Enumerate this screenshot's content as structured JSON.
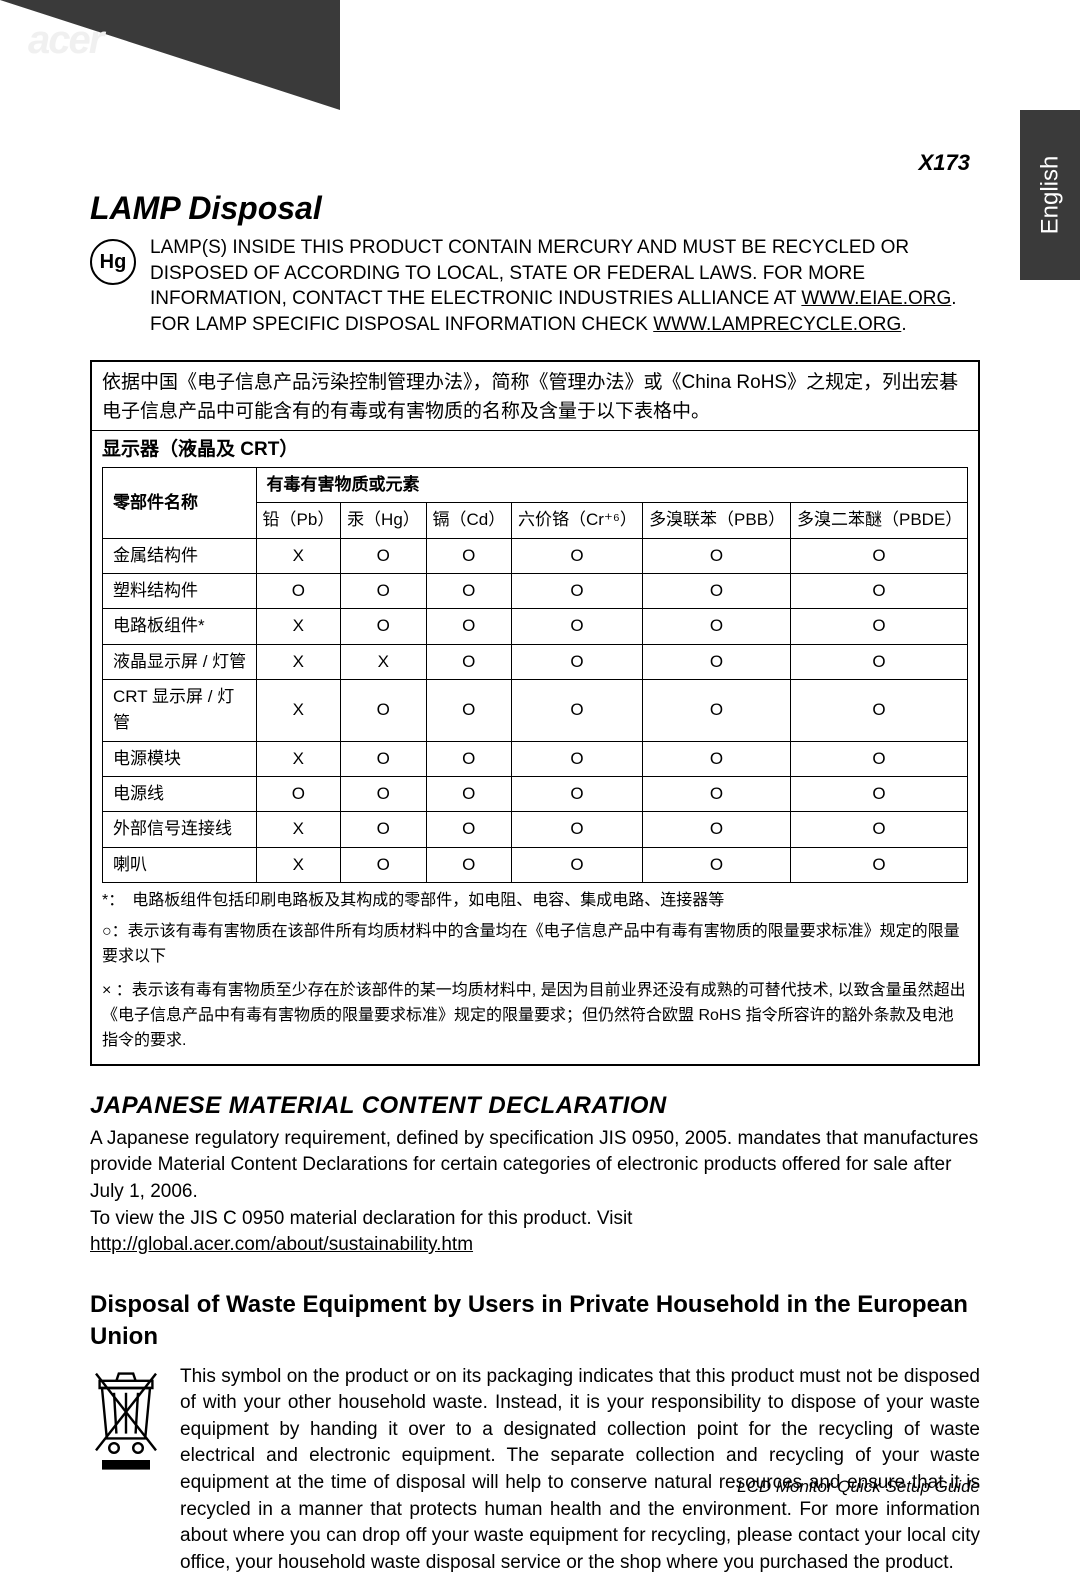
{
  "brand": "acer",
  "model": "X173",
  "side_tab": "English",
  "footer": "LCD Monitor Quick Setup Guide",
  "lamp": {
    "title": "LAMP Disposal",
    "hg": "Hg",
    "text1": "LAMP(S) INSIDE THIS PRODUCT CONTAIN MERCURY AND MUST BE RECYCLED OR DISPOSED OF ACCORDING TO LOCAL, STATE OR FEDERAL LAWS. FOR MORE INFORMATION, CONTACT THE ELECTRONIC INDUSTRIES ALLIANCE AT ",
    "link1": "WWW.EIAE.ORG",
    "text2": ". FOR LAMP SPECIFIC DISPOSAL INFORMATION CHECK ",
    "link2": "WWW.LAMPRECYCLE.ORG",
    "tail": "."
  },
  "rohs": {
    "intro": "依据中国《电子信息产品污染控制管理办法》，简称《管理办法》或《China RoHS》之规定，列出宏碁电子信息产品中可能含有的有毒或有害物质的名称及含量于以下表格中。",
    "display_type": "显示器（液晶及 CRT）",
    "part_header": "零部件名称",
    "substance_header": "有毒有害物质或元素",
    "columns": [
      "铅（Pb）",
      "汞（Hg）",
      "镉（Cd）",
      "六价铬（Cr⁺⁶）",
      "多溴联苯（PBB）",
      "多溴二苯醚（PBDE）"
    ],
    "rows": [
      {
        "part": "金属结构件",
        "vals": [
          "X",
          "O",
          "O",
          "O",
          "O",
          "O"
        ]
      },
      {
        "part": "塑料结构件",
        "vals": [
          "O",
          "O",
          "O",
          "O",
          "O",
          "O"
        ]
      },
      {
        "part": "电路板组件*",
        "vals": [
          "X",
          "O",
          "O",
          "O",
          "O",
          "O"
        ]
      },
      {
        "part": "液晶显示屏 / 灯管",
        "vals": [
          "X",
          "X",
          "O",
          "O",
          "O",
          "O"
        ]
      },
      {
        "part": "CRT 显示屏 / 灯管",
        "vals": [
          "X",
          "O",
          "O",
          "O",
          "O",
          "O"
        ]
      },
      {
        "part": "电源模块",
        "vals": [
          "X",
          "O",
          "O",
          "O",
          "O",
          "O"
        ]
      },
      {
        "part": "电源线",
        "vals": [
          "O",
          "O",
          "O",
          "O",
          "O",
          "O"
        ]
      },
      {
        "part": "外部信号连接线",
        "vals": [
          "X",
          "O",
          "O",
          "O",
          "O",
          "O"
        ]
      },
      {
        "part": "喇叭",
        "vals": [
          "X",
          "O",
          "O",
          "O",
          "O",
          "O"
        ]
      }
    ],
    "note_star": "*：　电路板组件包括印刷电路板及其构成的零部件，如电阻、电容、集成电路、连接器等",
    "note_o": "○：表示该有毒有害物质在该部件所有均质材料中的含量均在《电子信息产品中有毒有害物质的限量要求标准》规定的限量要求以下",
    "note_x": "× ：表示该有毒有害物质至少存在於该部件的某一均质材料中, 是因为目前业界还没有成熟的可替代技术, 以致含量虽然超出《电子信息产品中有毒有害物质的限量要求标准》规定的限量要求；但仍然符合欧盟 RoHS 指令所容许的豁外条款及电池指令的要求."
  },
  "japanese": {
    "title": "JAPANESE MATERIAL CONTENT DECLARATION",
    "body1": "A Japanese regulatory requirement, defined by specification JIS 0950, 2005. mandates that manufactures provide Material Content Declarations for certain categories of electronic products offered for sale after July 1, 2006.",
    "body2": "To view the JIS C 0950 material declaration for this product. Visit",
    "link": "http://global.acer.com/about/sustainability.htm"
  },
  "weee": {
    "title": "Disposal of Waste Equipment by Users in Private Household in the European Union",
    "body": "This symbol on the product or on its packaging indicates that this product must not be disposed of with your other household waste. Instead, it is your responsibility to dispose of your waste equipment by handing it over to a designated collection point for the recycling of waste electrical and electronic equipment. The separate collection and recycling of your waste equipment at the time of disposal will help to conserve natural resources and ensure that it is recycled in a manner that protects human health and the environment. For more information about where you can drop off your waste equipment for recycling, please contact your local city office, your household waste disposal service or the shop where you purchased the product."
  }
}
